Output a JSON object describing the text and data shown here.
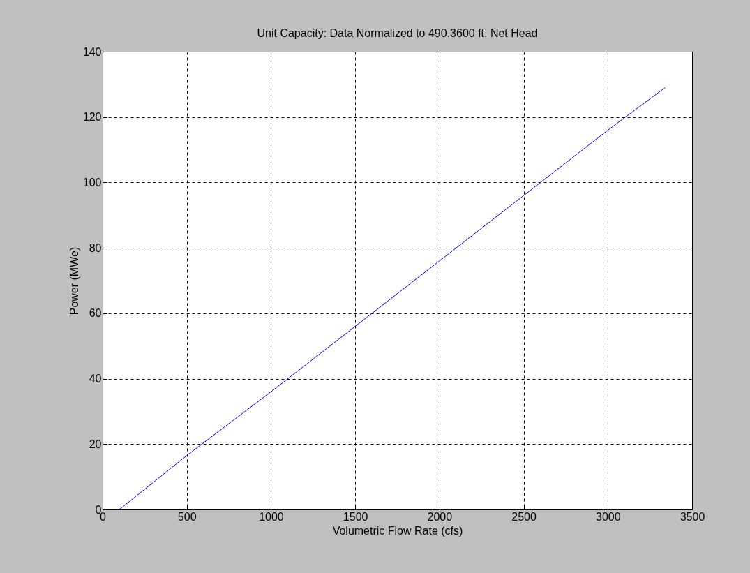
{
  "chart_data": {
    "type": "line",
    "title": "Unit Capacity: Data Normalized to 490.3600 ft. Net Head",
    "xlabel": "Volumetric Flow Rate (cfs)",
    "ylabel": "Power (MWe)",
    "x": [
      100,
      500,
      1000,
      1500,
      2000,
      2500,
      3000,
      3340
    ],
    "series": [
      {
        "color": "#0000ff",
        "values": [
          0,
          16.5,
          36,
          56,
          76,
          96,
          116,
          129
        ]
      }
    ],
    "xlim": [
      0,
      3500
    ],
    "xticks": [
      0,
      500,
      1000,
      1500,
      2000,
      2500,
      3000,
      3500
    ],
    "ylim": [
      0,
      140
    ],
    "yticks": [
      0,
      20,
      40,
      60,
      80,
      100,
      120,
      140
    ],
    "grid": true,
    "marker": "none",
    "line_style": "solid"
  }
}
